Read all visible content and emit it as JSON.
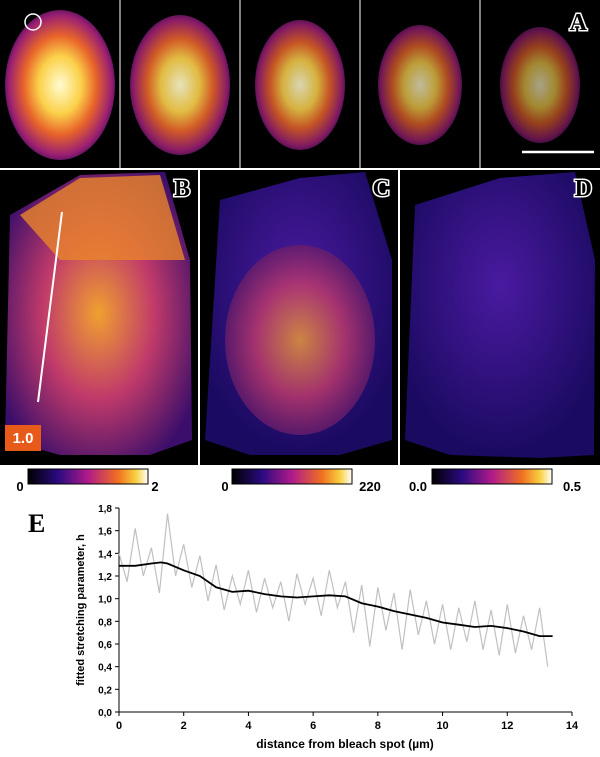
{
  "figure": {
    "panel_labels": [
      "A",
      "B",
      "C",
      "D",
      "E"
    ],
    "inset_label": "1.0",
    "colorbars": [
      {
        "min": "0",
        "max": "2"
      },
      {
        "min": "0",
        "max": "220"
      },
      {
        "min": "0.0",
        "max": "0.5"
      }
    ]
  },
  "chart_data": {
    "type": "line",
    "y_label": "fitted stretching parameter, h",
    "x_label": "distance from bleach spot (µm)",
    "xlim": [
      0,
      14
    ],
    "xticks": [
      0,
      2,
      4,
      6,
      8,
      10,
      12,
      14
    ],
    "ylim": [
      0,
      1.8
    ],
    "yticks": [
      {
        "value": 0,
        "label": "0,0"
      },
      {
        "value": 0.2,
        "label": "0,2"
      },
      {
        "value": 0.4,
        "label": "0,4"
      },
      {
        "value": 0.6,
        "label": "0,6"
      },
      {
        "value": 0.8,
        "label": "0,8"
      },
      {
        "value": 1.0,
        "label": "1,0"
      },
      {
        "value": 1.2,
        "label": "1,2"
      },
      {
        "value": 1.4,
        "label": "1,4"
      },
      {
        "value": 1.6,
        "label": "1,6"
      },
      {
        "value": 1.8,
        "label": "1,8"
      }
    ],
    "series": [
      {
        "color": "#c0c0c0",
        "x": [
          0,
          0.25,
          0.5,
          0.75,
          1,
          1.25,
          1.5,
          1.75,
          2,
          2.25,
          2.5,
          2.75,
          3,
          3.25,
          3.5,
          3.75,
          4,
          4.25,
          4.5,
          4.75,
          5,
          5.25,
          5.5,
          5.75,
          6,
          6.25,
          6.5,
          6.75,
          7,
          7.25,
          7.5,
          7.75,
          8,
          8.25,
          8.5,
          8.75,
          9,
          9.25,
          9.5,
          9.75,
          10,
          10.25,
          10.5,
          10.75,
          11,
          11.25,
          11.5,
          11.75,
          12,
          12.25,
          12.5,
          12.75,
          13,
          13.25
        ],
        "values": [
          1.4,
          1.15,
          1.62,
          1.2,
          1.45,
          1.05,
          1.75,
          1.2,
          1.48,
          1.1,
          1.38,
          0.98,
          1.3,
          0.9,
          1.2,
          0.95,
          1.25,
          0.88,
          1.18,
          0.92,
          1.15,
          0.8,
          1.22,
          0.95,
          1.18,
          0.85,
          1.25,
          0.92,
          1.15,
          0.7,
          1.12,
          0.58,
          1.1,
          0.72,
          1.05,
          0.55,
          1.08,
          0.68,
          0.98,
          0.6,
          0.95,
          0.55,
          0.92,
          0.62,
          0.98,
          0.55,
          0.9,
          0.5,
          0.95,
          0.52,
          0.85,
          0.55,
          0.92,
          0.4
        ]
      },
      {
        "color": "#000000",
        "x": [
          0,
          0.5,
          1,
          1.3,
          1.5,
          2,
          2.5,
          3,
          3.5,
          4,
          4.5,
          5,
          5.5,
          6,
          6.5,
          7,
          7.5,
          8,
          8.5,
          9,
          9.5,
          10,
          10.5,
          11,
          11.5,
          12,
          12.5,
          13,
          13.4
        ],
        "values": [
          1.29,
          1.29,
          1.31,
          1.32,
          1.31,
          1.25,
          1.2,
          1.1,
          1.06,
          1.07,
          1.04,
          1.02,
          1.01,
          1.02,
          1.03,
          1.02,
          0.96,
          0.93,
          0.89,
          0.86,
          0.83,
          0.79,
          0.77,
          0.75,
          0.76,
          0.74,
          0.71,
          0.67,
          0.67
        ]
      }
    ]
  }
}
